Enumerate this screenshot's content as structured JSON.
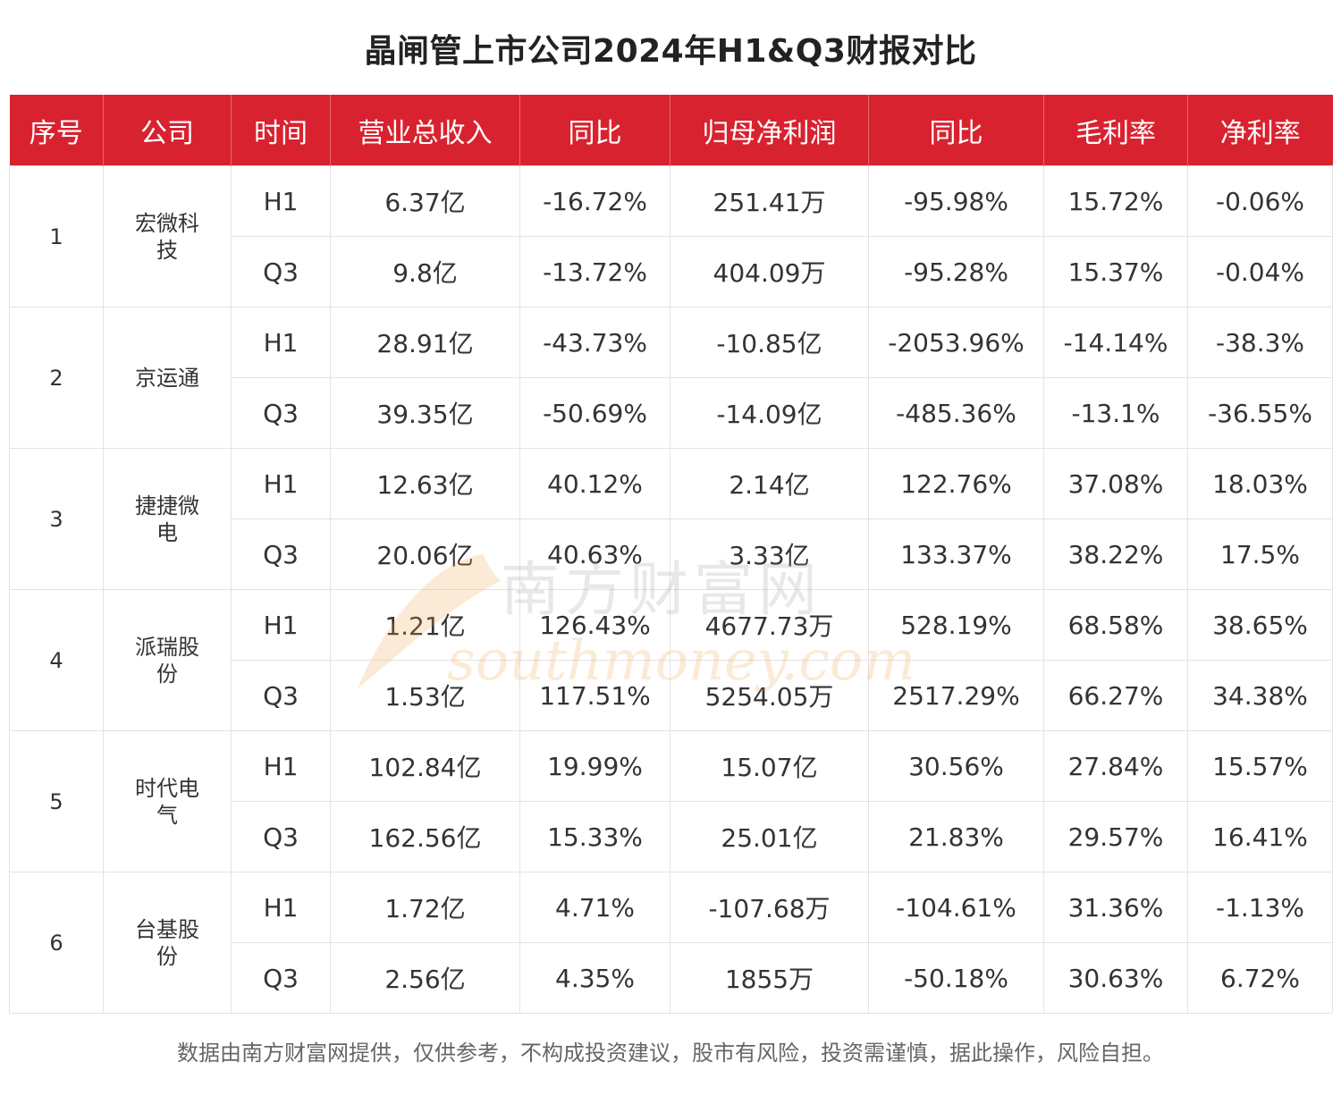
{
  "title": "晶闸管上市公司2024年H1&Q3财报对比",
  "headers": [
    "序号",
    "公司",
    "时间",
    "营业总收入",
    "同比",
    "归母净利润",
    "同比",
    "毛利率",
    "净利率"
  ],
  "companies": [
    {
      "seq": "1",
      "name": "宏微科技",
      "rows": [
        {
          "period": "H1",
          "revenue": "6.37亿",
          "revenue_yoy": "-16.72%",
          "net_profit": "251.41万",
          "profit_yoy": "-95.98%",
          "gross_margin": "15.72%",
          "net_margin": "-0.06%"
        },
        {
          "period": "Q3",
          "revenue": "9.8亿",
          "revenue_yoy": "-13.72%",
          "net_profit": "404.09万",
          "profit_yoy": "-95.28%",
          "gross_margin": "15.37%",
          "net_margin": "-0.04%"
        }
      ]
    },
    {
      "seq": "2",
      "name": "京运通",
      "rows": [
        {
          "period": "H1",
          "revenue": "28.91亿",
          "revenue_yoy": "-43.73%",
          "net_profit": "-10.85亿",
          "profit_yoy": "-2053.96%",
          "gross_margin": "-14.14%",
          "net_margin": "-38.3%"
        },
        {
          "period": "Q3",
          "revenue": "39.35亿",
          "revenue_yoy": "-50.69%",
          "net_profit": "-14.09亿",
          "profit_yoy": "-485.36%",
          "gross_margin": "-13.1%",
          "net_margin": "-36.55%"
        }
      ]
    },
    {
      "seq": "3",
      "name": "捷捷微电",
      "rows": [
        {
          "period": "H1",
          "revenue": "12.63亿",
          "revenue_yoy": "40.12%",
          "net_profit": "2.14亿",
          "profit_yoy": "122.76%",
          "gross_margin": "37.08%",
          "net_margin": "18.03%"
        },
        {
          "period": "Q3",
          "revenue": "20.06亿",
          "revenue_yoy": "40.63%",
          "net_profit": "3.33亿",
          "profit_yoy": "133.37%",
          "gross_margin": "38.22%",
          "net_margin": "17.5%"
        }
      ]
    },
    {
      "seq": "4",
      "name": "派瑞股份",
      "rows": [
        {
          "period": "H1",
          "revenue": "1.21亿",
          "revenue_yoy": "126.43%",
          "net_profit": "4677.73万",
          "profit_yoy": "528.19%",
          "gross_margin": "68.58%",
          "net_margin": "38.65%"
        },
        {
          "period": "Q3",
          "revenue": "1.53亿",
          "revenue_yoy": "117.51%",
          "net_profit": "5254.05万",
          "profit_yoy": "2517.29%",
          "gross_margin": "66.27%",
          "net_margin": "34.38%"
        }
      ]
    },
    {
      "seq": "5",
      "name": "时代电气",
      "rows": [
        {
          "period": "H1",
          "revenue": "102.84亿",
          "revenue_yoy": "19.99%",
          "net_profit": "15.07亿",
          "profit_yoy": "30.56%",
          "gross_margin": "27.84%",
          "net_margin": "15.57%"
        },
        {
          "period": "Q3",
          "revenue": "162.56亿",
          "revenue_yoy": "15.33%",
          "net_profit": "25.01亿",
          "profit_yoy": "21.83%",
          "gross_margin": "29.57%",
          "net_margin": "16.41%"
        }
      ]
    },
    {
      "seq": "6",
      "name": "台基股份",
      "rows": [
        {
          "period": "H1",
          "revenue": "1.72亿",
          "revenue_yoy": "4.71%",
          "net_profit": "-107.68万",
          "profit_yoy": "-104.61%",
          "gross_margin": "31.36%",
          "net_margin": "-1.13%"
        },
        {
          "period": "Q3",
          "revenue": "2.56亿",
          "revenue_yoy": "4.35%",
          "net_profit": "1855万",
          "profit_yoy": "-50.18%",
          "gross_margin": "30.63%",
          "net_margin": "6.72%"
        }
      ]
    }
  ],
  "footer": "数据由南方财富网提供，仅供参考，不构成投资建议，股市有风险，投资需谨慎，据此操作，风险自担。",
  "watermark": {
    "cn": "南方财富网",
    "en": "southmoney.com"
  },
  "colors": {
    "header_bg": "#d9222f",
    "header_text": "#ffffff",
    "grid": "#e3e3e3",
    "watermark": "#f0a24a"
  }
}
